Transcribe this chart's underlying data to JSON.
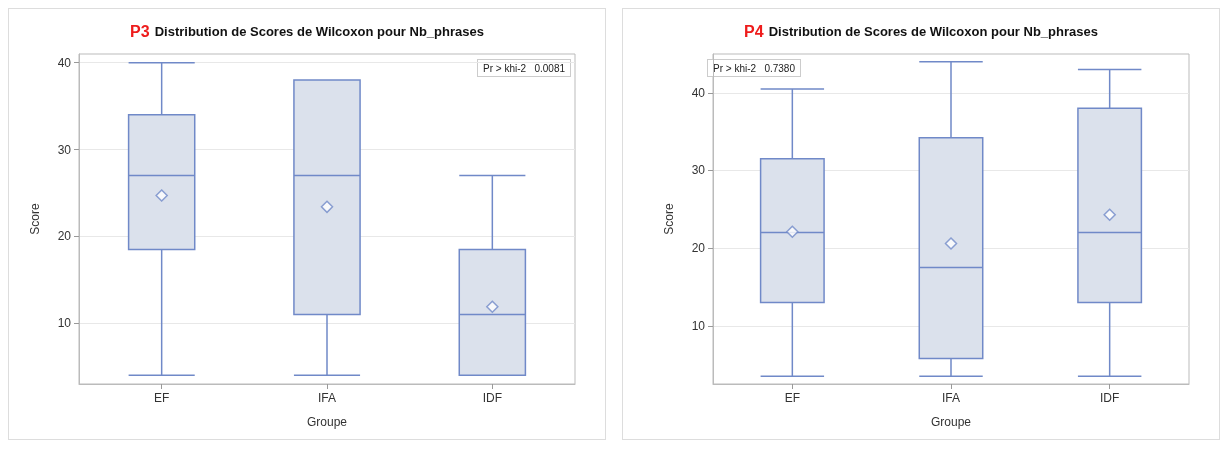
{
  "chart_data": [
    {
      "type": "box",
      "title": "P3 Distribution de Scores de Wilcoxon pour Nb_phrases",
      "xlabel": "Groupe",
      "ylabel": "Score",
      "categories": [
        "EF",
        "IFA",
        "IDF"
      ],
      "color": "#7089c8",
      "boxes": [
        {
          "low": 4,
          "q1": 18.5,
          "median": 27,
          "q3": 34,
          "high": 40,
          "mean": 24.7
        },
        {
          "low": 4,
          "q1": 11,
          "median": 27,
          "q3": 38,
          "high": 38,
          "mean": 23.4
        },
        {
          "low": 4,
          "q1": 4,
          "median": 11,
          "q3": 18.5,
          "high": 27,
          "mean": 11.9
        }
      ],
      "ylim": [
        3,
        41
      ],
      "yticks": [
        10,
        20,
        30,
        40
      ],
      "grid": "y",
      "marker": "diamond",
      "annotations": [
        "Pr > khi-2   0.0081"
      ]
    },
    {
      "type": "box",
      "title": "P4 Distribution de Scores de Wilcoxon pour Nb_phrases",
      "xlabel": "Groupe",
      "ylabel": "Score",
      "categories": [
        "EF",
        "IFA",
        "IDF"
      ],
      "color": "#7089c8",
      "boxes": [
        {
          "low": 3.5,
          "q1": 13,
          "median": 22,
          "q3": 31.5,
          "high": 40.5,
          "mean": 22.1
        },
        {
          "low": 3.5,
          "q1": 5.8,
          "median": 17.5,
          "q3": 34.2,
          "high": 44,
          "mean": 20.6
        },
        {
          "low": 3.5,
          "q1": 13,
          "median": 22,
          "q3": 38,
          "high": 43,
          "mean": 24.3
        }
      ],
      "ylim": [
        2.5,
        45
      ],
      "yticks": [
        10,
        20,
        30,
        40
      ],
      "grid": "y",
      "marker": "diamond",
      "annotations": [
        "Pr > khi-2   0.7380"
      ]
    }
  ]
}
